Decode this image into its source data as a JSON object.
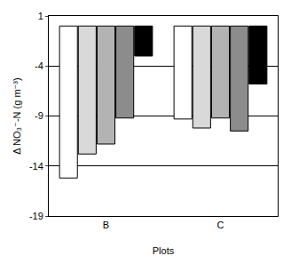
{
  "chart_data": {
    "type": "bar",
    "x_label": "Plots",
    "y_label": "Δ NO₃⁻-N (g m⁻³)",
    "categories": [
      "B",
      "C"
    ],
    "series": [
      {
        "color": "#ffffff",
        "values": [
          -15.2,
          -9.3
        ]
      },
      {
        "color": "#d9d9d9",
        "values": [
          -12.8,
          -10.2
        ]
      },
      {
        "color": "#b3b3b3",
        "values": [
          -11.8,
          -9.2
        ]
      },
      {
        "color": "#8c8c8c",
        "values": [
          -9.2,
          -10.5
        ]
      },
      {
        "color": "#000000",
        "values": [
          -3.0,
          -5.8
        ]
      }
    ],
    "ylim": [
      -19,
      1
    ],
    "yticks": [
      1,
      -4,
      -9,
      -14,
      -19
    ],
    "grid": true
  }
}
